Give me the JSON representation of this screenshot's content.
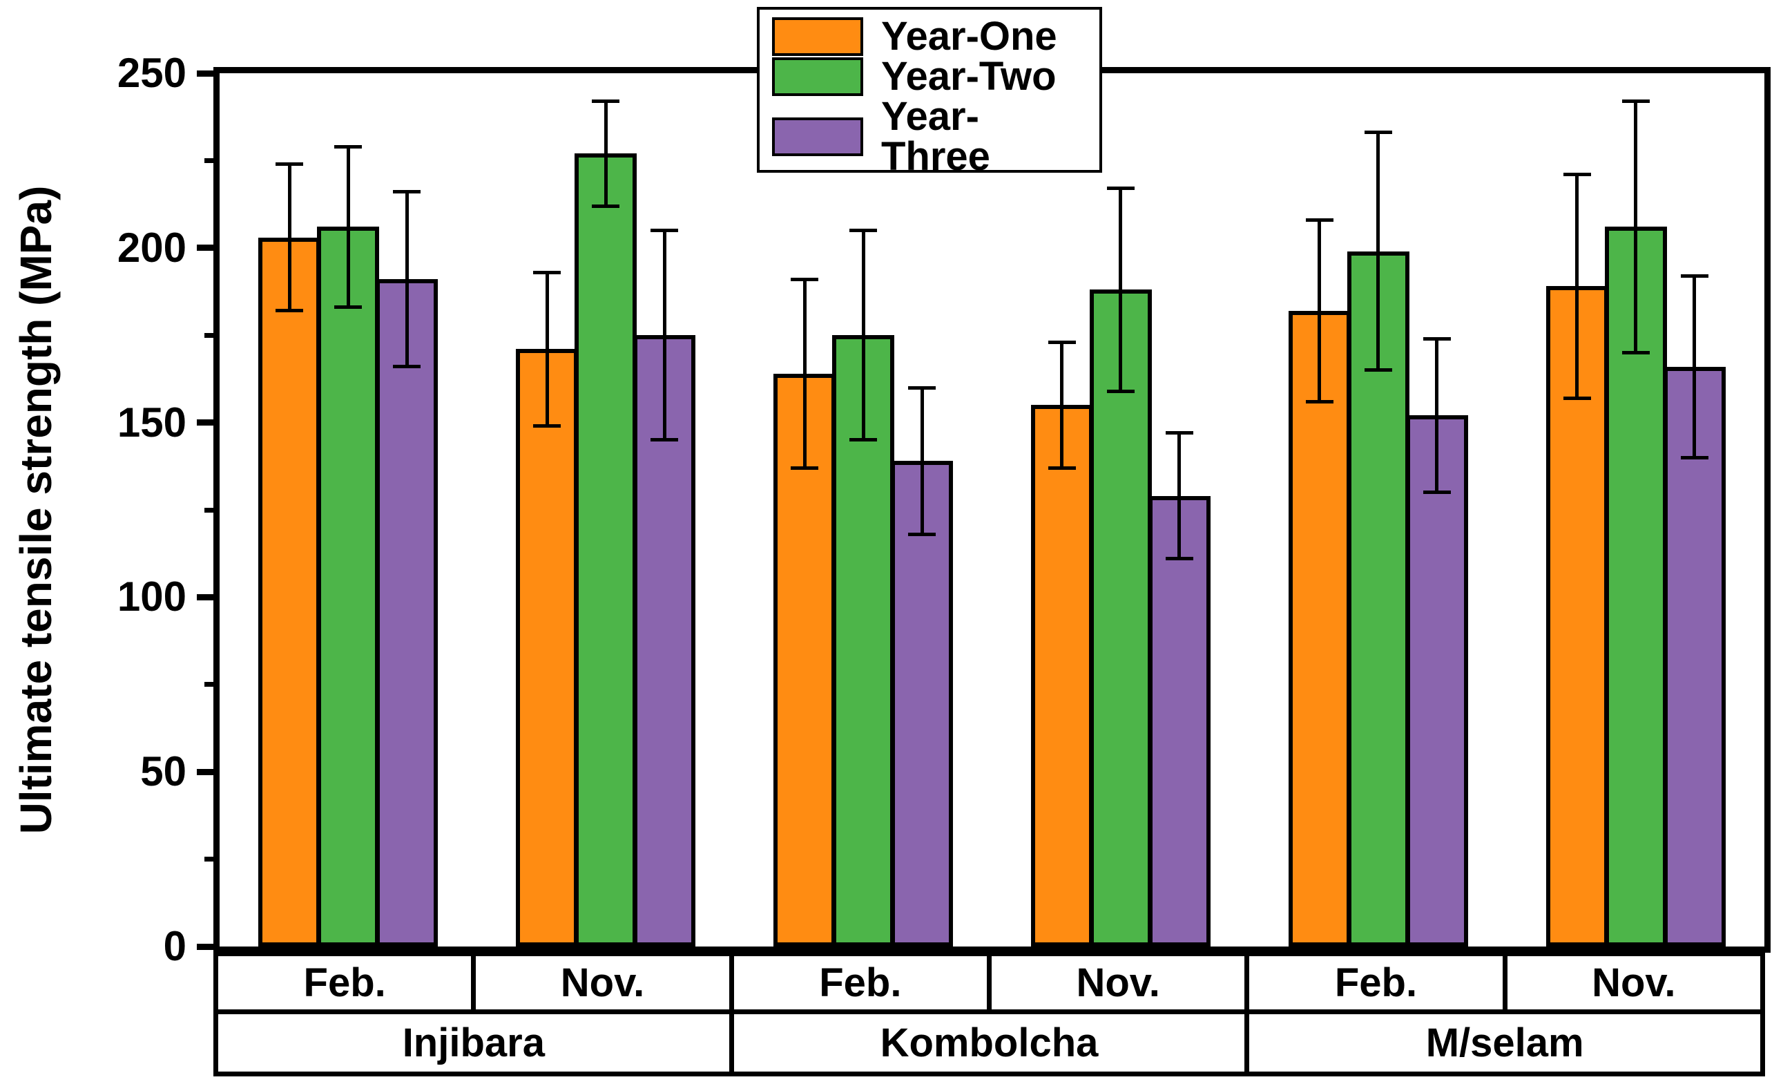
{
  "figure": {
    "background": "#ffffff",
    "axis_color": "#000000"
  },
  "chart_data": {
    "type": "bar",
    "title": "",
    "xlabel": "",
    "ylabel": "Ultimate tensile strength (MPa)",
    "ylim": [
      0,
      250
    ],
    "yticks": [
      0,
      50,
      100,
      150,
      200,
      250
    ],
    "yticks_minor": [
      25,
      75,
      125,
      175,
      225
    ],
    "grid": false,
    "legend_position": "top-center",
    "group_labels": [
      "Feb.",
      "Nov.",
      "Feb.",
      "Nov.",
      "Feb.",
      "Nov."
    ],
    "location_labels": [
      "Injibara",
      "Kombolcha",
      "M/selam"
    ],
    "series": [
      {
        "name": "Year-One",
        "color": "#FF8C12",
        "values": [
          203,
          171,
          164,
          155,
          182,
          189
        ],
        "errors": [
          21,
          22,
          27,
          18,
          26,
          32
        ]
      },
      {
        "name": "Year-Two",
        "color": "#4DB549",
        "values": [
          206,
          227,
          175,
          188,
          199,
          206
        ],
        "errors": [
          23,
          15,
          30,
          29,
          34,
          36
        ]
      },
      {
        "name": "Year-Three",
        "color": "#8A65AE",
        "values": [
          191,
          175,
          139,
          129,
          152,
          166
        ],
        "errors": [
          25,
          30,
          21,
          18,
          22,
          26
        ]
      }
    ]
  }
}
